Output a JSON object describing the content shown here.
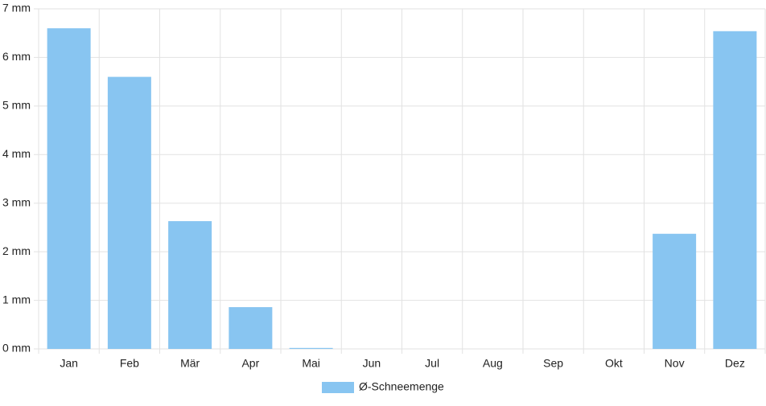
{
  "chart_data": {
    "type": "bar",
    "categories": [
      "Jan",
      "Feb",
      "Mär",
      "Apr",
      "Mai",
      "Jun",
      "Jul",
      "Aug",
      "Sep",
      "Okt",
      "Nov",
      "Dez"
    ],
    "series": [
      {
        "name": "Ø-Schneemenge",
        "color": "#88c5f1",
        "values": [
          6.6,
          5.6,
          2.63,
          0.86,
          0.02,
          0,
          0,
          0,
          0,
          0,
          2.37,
          6.54
        ]
      }
    ],
    "ylim": [
      0,
      7
    ],
    "yticks": [
      {
        "value": 0,
        "label": "0 mm"
      },
      {
        "value": 1,
        "label": "1 mm"
      },
      {
        "value": 2,
        "label": "2 mm"
      },
      {
        "value": 3,
        "label": "3 mm"
      },
      {
        "value": 4,
        "label": "4 mm"
      },
      {
        "value": 5,
        "label": "5 mm"
      },
      {
        "value": 6,
        "label": "6 mm"
      },
      {
        "value": 7,
        "label": "7 mm"
      }
    ],
    "grid": true,
    "legend": "bottom"
  }
}
